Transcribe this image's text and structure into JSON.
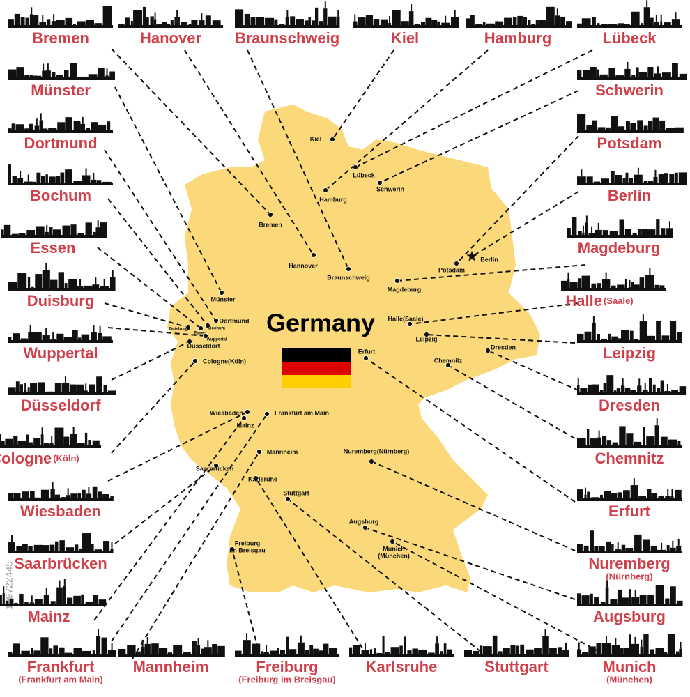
{
  "title": "Germany",
  "watermark": "199722445",
  "outer_labels": [
    {
      "name": "Bremen"
    },
    {
      "name": "Hanover"
    },
    {
      "name": "Braunschweig"
    },
    {
      "name": "Kiel"
    },
    {
      "name": "Hamburg"
    },
    {
      "name": "Lübeck"
    },
    {
      "name": "Münster"
    },
    {
      "name": "Dortmund"
    },
    {
      "name": "Bochum"
    },
    {
      "name": "Essen"
    },
    {
      "name": "Duisburg"
    },
    {
      "name": "Wuppertal"
    },
    {
      "name": "Düsseldorf"
    },
    {
      "name": "Cologne",
      "sub": "(Köln)"
    },
    {
      "name": "Wiesbaden"
    },
    {
      "name": "Saarbrücken"
    },
    {
      "name": "Mainz"
    },
    {
      "name": "Frankfurt",
      "sub": "(Frankfurt am Main)"
    },
    {
      "name": "Mannheim"
    },
    {
      "name": "Freiburg",
      "sub": "(Freiburg im Breisgau)"
    },
    {
      "name": "Karlsruhe"
    },
    {
      "name": "Stuttgart"
    },
    {
      "name": "Munich",
      "sub": "(München)"
    },
    {
      "name": "Schwerin"
    },
    {
      "name": "Potsdam"
    },
    {
      "name": "Berlin"
    },
    {
      "name": "Magdeburg"
    },
    {
      "name": "Halle",
      "sub": "(Saale)"
    },
    {
      "name": "Leipzig"
    },
    {
      "name": "Dresden"
    },
    {
      "name": "Chemnitz"
    },
    {
      "name": "Erfurt"
    },
    {
      "name": "Nuremberg",
      "sub": "(Nürnberg)"
    },
    {
      "name": "Augsburg"
    }
  ],
  "map_cities": [
    {
      "lines": [
        "Kiel"
      ]
    },
    {
      "lines": [
        "Lübeck"
      ]
    },
    {
      "lines": [
        "Schwerin"
      ]
    },
    {
      "lines": [
        "Hamburg"
      ]
    },
    {
      "lines": [
        "Bremen"
      ]
    },
    {
      "lines": [
        "Hannover"
      ]
    },
    {
      "lines": [
        "Braunschweig"
      ]
    },
    {
      "lines": [
        "Berlin"
      ]
    },
    {
      "lines": [
        "Potsdam"
      ]
    },
    {
      "lines": [
        "Magdeburg"
      ]
    },
    {
      "lines": [
        "Münster"
      ]
    },
    {
      "lines": [
        "Dortmund"
      ]
    },
    {
      "lines": [
        "Duisburg"
      ]
    },
    {
      "lines": [
        "Essen"
      ]
    },
    {
      "lines": [
        "Bochum"
      ]
    },
    {
      "lines": [
        "Wuppertal"
      ]
    },
    {
      "lines": [
        "Düsseldorf"
      ]
    },
    {
      "lines": [
        "Cologne(Köln)"
      ]
    },
    {
      "lines": [
        "Halle(Saale)"
      ]
    },
    {
      "lines": [
        "Leipzig"
      ]
    },
    {
      "lines": [
        "Dresden"
      ]
    },
    {
      "lines": [
        "Erfurt"
      ]
    },
    {
      "lines": [
        "Chemnitz"
      ]
    },
    {
      "lines": [
        "Wiesbaden"
      ]
    },
    {
      "lines": [
        "Mainz"
      ]
    },
    {
      "lines": [
        "Frankfurt am Main"
      ]
    },
    {
      "lines": [
        "Mannheim"
      ]
    },
    {
      "lines": [
        "Saarbrücken"
      ]
    },
    {
      "lines": [
        "Karlsruhe"
      ]
    },
    {
      "lines": [
        "Stuttgart"
      ]
    },
    {
      "lines": [
        "Nuremberg(Nürnberg)"
      ]
    },
    {
      "lines": [
        "Augsburg"
      ]
    },
    {
      "lines": [
        "Munich",
        "(München)"
      ]
    },
    {
      "lines": [
        "Freiburg",
        "im Breisgau"
      ]
    }
  ]
}
